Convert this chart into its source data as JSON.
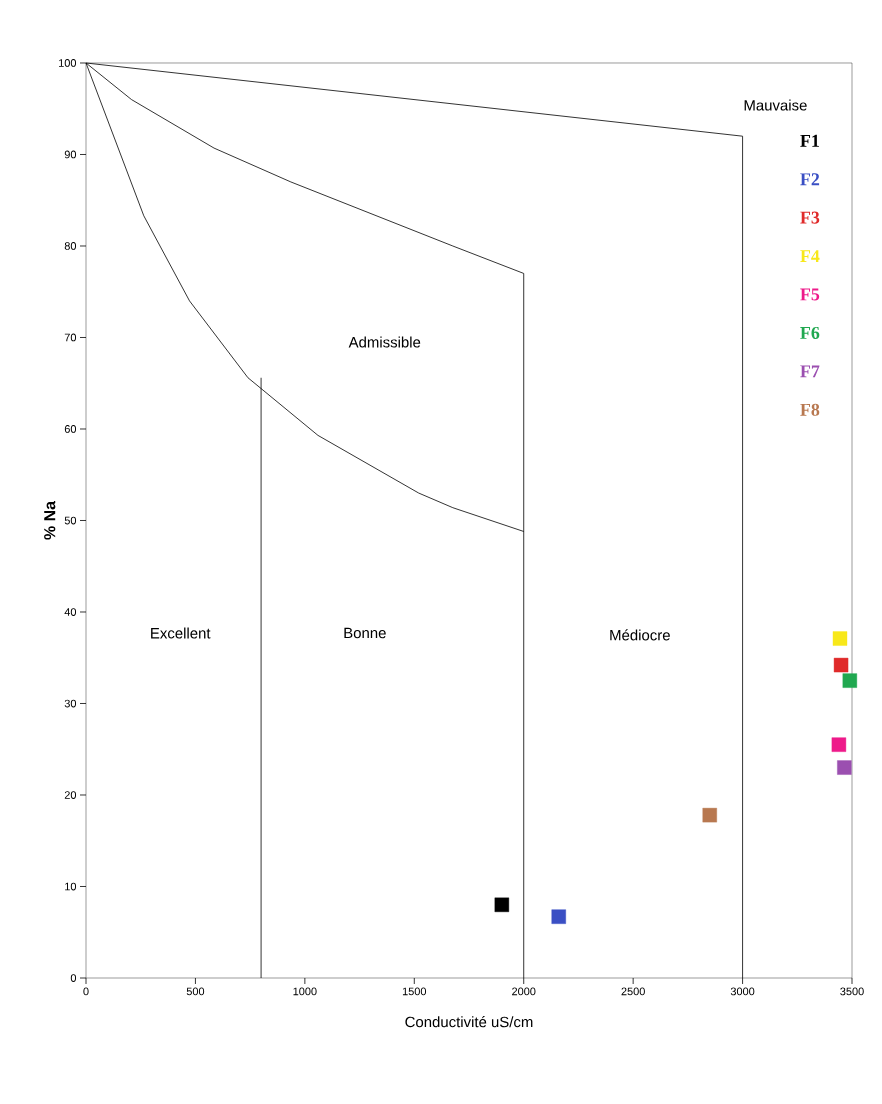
{
  "chart_data": {
    "type": "scatter",
    "xlabel": "Conductivité uS/cm",
    "ylabel": "% Na",
    "xlim": [
      0,
      3500
    ],
    "ylim": [
      0,
      100
    ],
    "xticks": [
      0,
      500,
      1000,
      1500,
      2000,
      2500,
      3000,
      3500
    ],
    "yticks": [
      0,
      10,
      20,
      30,
      40,
      50,
      60,
      70,
      80,
      90,
      100
    ],
    "grid": false,
    "legend": "top right",
    "marker": "square",
    "series": [
      {
        "type": "line",
        "color": "#000000",
        "marker": "none",
        "x": [
          0,
          3000,
          3000
        ],
        "values": [
          100,
          92,
          0
        ]
      },
      {
        "type": "line",
        "color": "#000000",
        "marker": "none",
        "x": [
          0,
          208,
          585,
          936,
          1676,
          2000,
          2000
        ],
        "values": [
          100,
          96,
          90.7,
          87,
          80,
          77,
          0
        ]
      },
      {
        "type": "line",
        "color": "#000000",
        "marker": "none",
        "x": [
          0,
          264,
          473,
          740,
          1060,
          1520,
          1676,
          2000
        ],
        "values": [
          100,
          83.3,
          74,
          65.6,
          59.3,
          53,
          51.4,
          48.8
        ]
      },
      {
        "type": "line",
        "color": "#000000",
        "marker": "none",
        "x": [
          800,
          800
        ],
        "values": [
          65.6,
          0
        ]
      },
      {
        "name": "F1",
        "color": "#000000",
        "x": [
          1900
        ],
        "values": [
          8
        ]
      },
      {
        "name": "F2",
        "color": "#3a4fc4",
        "x": [
          2160
        ],
        "values": [
          6.7
        ]
      },
      {
        "name": "F3",
        "color": "#e02a2a",
        "x": [
          3450
        ],
        "values": [
          34.2
        ]
      },
      {
        "name": "F4",
        "color": "#f8e81a",
        "x": [
          3445
        ],
        "values": [
          37.1
        ]
      },
      {
        "name": "F5",
        "color": "#ee1a8a",
        "x": [
          3440
        ],
        "values": [
          25.5
        ]
      },
      {
        "name": "F6",
        "color": "#20a850",
        "x": [
          3490
        ],
        "values": [
          32.5
        ]
      },
      {
        "name": "F7",
        "color": "#9b4fb0",
        "x": [
          3465
        ],
        "values": [
          23
        ]
      },
      {
        "name": "F8",
        "color": "#b87850",
        "x": [
          2850
        ],
        "values": [
          17.8
        ]
      }
    ],
    "annotations": [
      "Mauvaise",
      "Admissible",
      "Excellent",
      "Bonne",
      "Médiocre"
    ]
  }
}
